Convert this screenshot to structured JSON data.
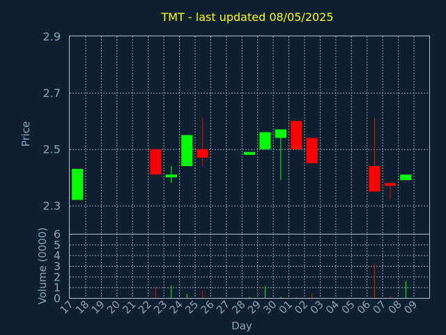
{
  "chart_data": {
    "type": "candlestick",
    "title": "TMT - last updated 08/05/2025",
    "xlabel": "Day",
    "price_panel": {
      "ylabel": "Price",
      "ylim": [
        2.2,
        2.9
      ],
      "yticks": [
        "2.3",
        "2.5",
        "2.7",
        "2.9"
      ]
    },
    "volume_panel": {
      "ylabel": "Volume (0000)",
      "ylim": [
        0,
        6
      ],
      "yticks": [
        "0",
        "1",
        "2",
        "3",
        "4",
        "5",
        "6"
      ]
    },
    "x": [
      "17",
      "18",
      "19",
      "20",
      "21",
      "22",
      "23",
      "24",
      "25",
      "26",
      "27",
      "28",
      "29",
      "30",
      "01",
      "02",
      "03",
      "04",
      "05",
      "06",
      "07",
      "08",
      "09"
    ],
    "candles": [
      {
        "day": "17",
        "open": 2.32,
        "high": 2.43,
        "low": 2.32,
        "close": 2.43,
        "volume": 0.0
      },
      {
        "day": "22",
        "open": 2.5,
        "high": 2.5,
        "low": 2.41,
        "close": 2.41,
        "volume": 1.0
      },
      {
        "day": "23",
        "open": 2.4,
        "high": 2.44,
        "low": 2.38,
        "close": 2.41,
        "volume": 1.2
      },
      {
        "day": "24",
        "open": 2.44,
        "high": 2.55,
        "low": 2.44,
        "close": 2.55,
        "volume": 0.4
      },
      {
        "day": "25",
        "open": 2.5,
        "high": 2.61,
        "low": 2.44,
        "close": 2.47,
        "volume": 0.7
      },
      {
        "day": "28",
        "open": 2.48,
        "high": 2.49,
        "low": 2.48,
        "close": 2.49,
        "volume": 0.1
      },
      {
        "day": "29",
        "open": 2.5,
        "high": 2.56,
        "low": 2.5,
        "close": 2.56,
        "volume": 1.1
      },
      {
        "day": "30",
        "open": 2.54,
        "high": 2.57,
        "low": 2.39,
        "close": 2.57,
        "volume": 0.1
      },
      {
        "day": "01",
        "open": 2.6,
        "high": 2.6,
        "low": 2.5,
        "close": 2.5,
        "volume": 0.1
      },
      {
        "day": "02",
        "open": 2.54,
        "high": 2.54,
        "low": 2.45,
        "close": 2.45,
        "volume": 0.4
      },
      {
        "day": "06",
        "open": 2.44,
        "high": 2.61,
        "low": 2.35,
        "close": 2.35,
        "volume": 3.2
      },
      {
        "day": "07",
        "open": 2.38,
        "high": 2.38,
        "low": 2.32,
        "close": 2.37,
        "volume": 0.2
      },
      {
        "day": "08",
        "open": 2.39,
        "high": 2.41,
        "low": 2.39,
        "close": 2.41,
        "volume": 1.6
      }
    ],
    "grid": true,
    "up_color": "#00ff00",
    "down_color": "#ff0000",
    "background": "#0f2031"
  }
}
